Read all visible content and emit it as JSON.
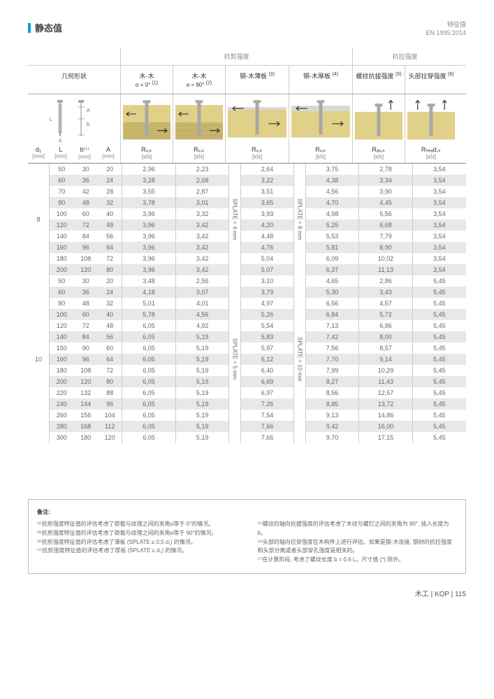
{
  "header": {
    "title": "静态值",
    "right1": "特征值",
    "right2": "EN 1995:2014"
  },
  "sections": {
    "shear": "抗剪强度",
    "tension": "抗拉强度"
  },
  "columns": {
    "geom": "几何形状",
    "c1": "木-木",
    "c1sub": "α = 0°",
    "c1sup": "(1)",
    "c2": "木-木",
    "c2sub": "α = 90°",
    "c2sup": "(2)",
    "c3": "钢-木薄板",
    "c3sup": "(3)",
    "c4": "钢-木厚板",
    "c4sup": "(4)",
    "c5": "螺纹抗拔强度",
    "c5sup": "(5)",
    "c6": "头部拉穿强度",
    "c6sup": "(6)"
  },
  "symbols": {
    "d1": "d₁",
    "d1u": "[mm]",
    "L": "L",
    "Lu": "[mm]",
    "b": "b⁽⁷⁾",
    "bu": "[mm]",
    "A": "A",
    "Au": "[mm]",
    "Rv": "Rᵥ,ₖ",
    "Rvu": "[kN]",
    "Rax": "Rₐₓ,ₖ",
    "Raxu": "[kN]",
    "Rhead": "Rₕₑₐd,ₖ",
    "Rheadu": "[kN]"
  },
  "splate": {
    "s4": "SPLATE = 4 mm",
    "s8": "SPLATE = 8 mm",
    "s5": "SPLATE = 5 mm",
    "s10": "SPLATE = 10 mm"
  },
  "widths": {
    "geom_d1": 30,
    "geom_L": 34,
    "geom_b": 34,
    "geom_A": 34,
    "col": 75,
    "splate": 16
  },
  "data8": [
    {
      "L": "50",
      "b": "30",
      "A": "20",
      "r1": "2,96",
      "r2": "2,23",
      "r3": "2,64",
      "r4": "3,75",
      "r5": "2,78",
      "r6": "3,54",
      "s": false
    },
    {
      "L": "60",
      "b": "36",
      "A": "24",
      "r1": "3,28",
      "r2": "2,68",
      "r3": "3,22",
      "r4": "4,38",
      "r5": "3,34",
      "r6": "3,54",
      "s": true
    },
    {
      "L": "70",
      "b": "42",
      "A": "28",
      "r1": "3,55",
      "r2": "2,87",
      "r3": "3,51",
      "r4": "4,56",
      "r5": "3,90",
      "r6": "3,54",
      "s": false
    },
    {
      "L": "80",
      "b": "48",
      "A": "32",
      "r1": "3,78",
      "r2": "3,01",
      "r3": "3,65",
      "r4": "4,70",
      "r5": "4,45",
      "r6": "3,54",
      "s": true
    },
    {
      "L": "100",
      "b": "60",
      "A": "40",
      "r1": "3,96",
      "r2": "3,32",
      "r3": "3,93",
      "r4": "4,98",
      "r5": "5,56",
      "r6": "3,54",
      "s": false
    },
    {
      "L": "120",
      "b": "72",
      "A": "48",
      "r1": "3,96",
      "r2": "3,42",
      "r3": "4,20",
      "r4": "5,25",
      "r5": "6,68",
      "r6": "3,54",
      "s": true
    },
    {
      "L": "140",
      "b": "84",
      "A": "56",
      "r1": "3,96",
      "r2": "3,42",
      "r3": "4,48",
      "r4": "5,53",
      "r5": "7,79",
      "r6": "3,54",
      "s": false
    },
    {
      "L": "160",
      "b": "96",
      "A": "64",
      "r1": "3,96",
      "r2": "3,42",
      "r3": "4,76",
      "r4": "5,81",
      "r5": "8,90",
      "r6": "3,54",
      "s": true
    },
    {
      "L": "180",
      "b": "108",
      "A": "72",
      "r1": "3,96",
      "r2": "3,42",
      "r3": "5,04",
      "r4": "6,09",
      "r5": "10,02",
      "r6": "3,54",
      "s": false
    },
    {
      "L": "200",
      "b": "120",
      "A": "80",
      "r1": "3,96",
      "r2": "3,42",
      "r3": "5,07",
      "r4": "6,37",
      "r5": "11,13",
      "r6": "3,54",
      "s": true
    }
  ],
  "data10": [
    {
      "L": "50",
      "b": "30",
      "A": "20",
      "r1": "3,48",
      "r2": "2,56",
      "r3": "3,10",
      "r4": "4,65",
      "r5": "2,86",
      "r6": "5,45",
      "s": false
    },
    {
      "L": "60",
      "b": "36",
      "A": "24",
      "r1": "4,18",
      "r2": "3,07",
      "r3": "3,79",
      "r4": "5,30",
      "r5": "3,43",
      "r6": "5,45",
      "s": true
    },
    {
      "L": "80",
      "b": "48",
      "A": "32",
      "r1": "5,01",
      "r2": "4,01",
      "r3": "4,97",
      "r4": "6,56",
      "r5": "4,57",
      "r6": "5,45",
      "s": false
    },
    {
      "L": "100",
      "b": "60",
      "A": "40",
      "r1": "5,78",
      "r2": "4,56",
      "r3": "5,26",
      "r4": "6,84",
      "r5": "5,72",
      "r6": "5,45",
      "s": true
    },
    {
      "L": "120",
      "b": "72",
      "A": "48",
      "r1": "6,05",
      "r2": "4,92",
      "r3": "5,54",
      "r4": "7,13",
      "r5": "6,86",
      "r6": "5,45",
      "s": false
    },
    {
      "L": "140",
      "b": "84",
      "A": "56",
      "r1": "6,05",
      "r2": "5,19",
      "r3": "5,83",
      "r4": "7,42",
      "r5": "8,00",
      "r6": "5,45",
      "s": true
    },
    {
      "L": "150",
      "b": "90",
      "A": "60",
      "r1": "6,05",
      "r2": "5,19",
      "r3": "5,97",
      "r4": "7,56",
      "r5": "8,57",
      "r6": "5,45",
      "s": false
    },
    {
      "L": "160",
      "b": "96",
      "A": "64",
      "r1": "6,05",
      "r2": "5,19",
      "r3": "6,12",
      "r4": "7,70",
      "r5": "9,14",
      "r6": "5,45",
      "s": true
    },
    {
      "L": "180",
      "b": "108",
      "A": "72",
      "r1": "6,05",
      "r2": "5,19",
      "r3": "6,40",
      "r4": "7,99",
      "r5": "10,29",
      "r6": "5,45",
      "s": false
    },
    {
      "L": "200",
      "b": "120",
      "A": "80",
      "r1": "6,05",
      "r2": "5,19",
      "r3": "6,69",
      "r4": "8,27",
      "r5": "11,43",
      "r6": "5,45",
      "s": true
    },
    {
      "L": "220",
      "b": "132",
      "A": "88",
      "r1": "6,05",
      "r2": "5,19",
      "r3": "6,97",
      "r4": "8,56",
      "r5": "12,57",
      "r6": "5,45",
      "s": false
    },
    {
      "L": "240",
      "b": "144",
      "A": "96",
      "r1": "6,05",
      "r2": "5,19",
      "r3": "7,26",
      "r4": "8,85",
      "r5": "13,72",
      "r6": "5,45",
      "s": true
    },
    {
      "L": "260",
      "b": "156",
      "A": "104",
      "r1": "6,05",
      "r2": "5,19",
      "r3": "7,54",
      "r4": "9,13",
      "r5": "14,86",
      "r6": "5,45",
      "s": false
    },
    {
      "L": "280",
      "b": "168",
      "A": "112",
      "r1": "6,05",
      "r2": "5,19",
      "r3": "7,66",
      "r4": "9,42",
      "r5": "16,00",
      "r6": "5,45",
      "s": true
    },
    {
      "L": "300",
      "b": "180",
      "A": "120",
      "r1": "6,05",
      "r2": "5,19",
      "r3": "7,66",
      "r4": "9,70",
      "r5": "17,15",
      "r6": "5,45",
      "s": false
    }
  ],
  "notes": {
    "title": "备注:",
    "left": [
      "⁽¹⁾抗剪强度特征值的评估考虑了荷载与纹理之间的夹角α等于 0°的情况。",
      "⁽²⁾抗剪强度特征值的评估考虑了荷载与纹理之间的夹角α等于 90°的情况。",
      "⁽³⁾抗剪强度特征值的评估考虑了薄板 (SPLATE ≤ 0,5 d₁) 的情况。",
      "⁽⁴⁾抗剪强度特征值的评估考虑了厚板 (SPLATE ≥ d₁) 的情况。"
    ],
    "right": [
      "⁽⁵⁾螺纹的轴向抗拔强度的评估考虑了木纹与螺钉之间的夹角为 90°, 插入长度为 b。",
      "⁽⁶⁾头部的轴向拉穿强度在木构件上进行评估。如果是钢-木连接, 钢材的抗拉强度和头部分离或者头部穿孔强度是相关的。",
      "⁽⁷⁾在计算阶段, 考虑了螺纹长度 b = 0.6 L。尺寸值 (*) 除外。"
    ]
  },
  "footer": "木工  |  KOP  |  115",
  "diagram_colors": {
    "wood_light": "#e0d088",
    "wood_dark": "#c8b56c",
    "screw": "#a8a8a8",
    "steel": "#d8d8d8",
    "arrow": "#333333"
  }
}
